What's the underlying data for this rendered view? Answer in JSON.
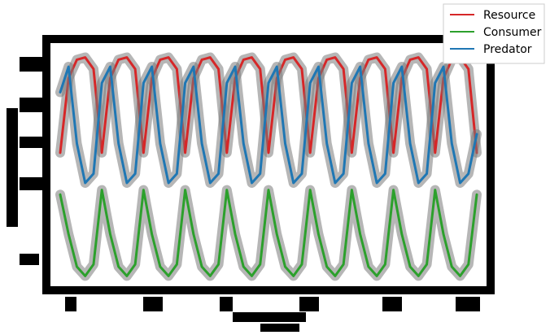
{
  "chart_data": {
    "type": "line",
    "title": "",
    "xlabel": "",
    "ylabel": "",
    "xlim": [
      0,
      100
    ],
    "ylim": [
      0,
      1
    ],
    "grid": false,
    "legend_position": "top-right",
    "x": [
      0,
      2,
      4,
      6,
      8,
      10,
      12,
      14,
      16,
      18,
      20,
      22,
      24,
      26,
      28,
      30,
      32,
      34,
      36,
      38,
      40,
      42,
      44,
      46,
      48,
      50,
      52,
      54,
      56,
      58,
      60,
      62,
      64,
      66,
      68,
      70,
      72,
      74,
      76,
      78,
      80,
      82,
      84,
      86,
      88,
      90,
      92,
      94,
      96,
      98,
      100
    ],
    "series": [
      {
        "name": "Resource",
        "color": "#d62728",
        "values": [
          0.56,
          0.88,
          0.96,
          0.97,
          0.92,
          0.56,
          0.88,
          0.96,
          0.97,
          0.92,
          0.56,
          0.88,
          0.96,
          0.97,
          0.92,
          0.56,
          0.88,
          0.96,
          0.97,
          0.92,
          0.56,
          0.88,
          0.96,
          0.97,
          0.92,
          0.56,
          0.88,
          0.96,
          0.97,
          0.92,
          0.56,
          0.88,
          0.96,
          0.97,
          0.92,
          0.56,
          0.88,
          0.96,
          0.97,
          0.92,
          0.56,
          0.88,
          0.96,
          0.97,
          0.92,
          0.56,
          0.88,
          0.96,
          0.97,
          0.92,
          0.56
        ]
      },
      {
        "name": "Consumer",
        "color": "#2ca02c",
        "values": [
          0.38,
          0.21,
          0.07,
          0.03,
          0.08,
          0.4,
          0.21,
          0.07,
          0.03,
          0.08,
          0.4,
          0.21,
          0.07,
          0.03,
          0.08,
          0.4,
          0.21,
          0.07,
          0.03,
          0.08,
          0.4,
          0.21,
          0.07,
          0.03,
          0.08,
          0.4,
          0.21,
          0.07,
          0.03,
          0.08,
          0.4,
          0.21,
          0.07,
          0.03,
          0.08,
          0.4,
          0.21,
          0.07,
          0.03,
          0.08,
          0.4,
          0.21,
          0.07,
          0.03,
          0.08,
          0.4,
          0.21,
          0.07,
          0.03,
          0.08,
          0.38
        ]
      },
      {
        "name": "Predator",
        "color": "#1f77b4",
        "values": [
          0.82,
          0.93,
          0.6,
          0.43,
          0.47,
          0.86,
          0.93,
          0.6,
          0.43,
          0.47,
          0.86,
          0.93,
          0.6,
          0.43,
          0.47,
          0.86,
          0.93,
          0.6,
          0.43,
          0.47,
          0.86,
          0.93,
          0.6,
          0.43,
          0.47,
          0.86,
          0.93,
          0.6,
          0.43,
          0.47,
          0.86,
          0.93,
          0.6,
          0.43,
          0.47,
          0.86,
          0.93,
          0.6,
          0.43,
          0.47,
          0.86,
          0.93,
          0.6,
          0.43,
          0.47,
          0.86,
          0.93,
          0.6,
          0.43,
          0.47,
          0.64
        ]
      }
    ]
  }
}
